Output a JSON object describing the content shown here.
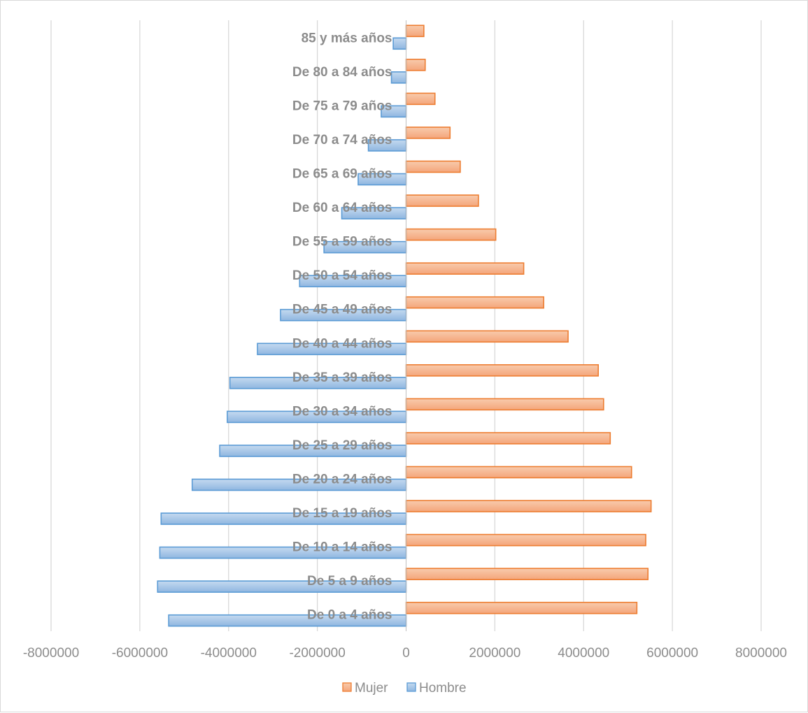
{
  "chart_data": {
    "type": "bar",
    "orientation": "horizontal",
    "categories": [
      "De 0 a 4 años",
      "De 5 a 9 años",
      "De 10 a 14 años",
      "De 15 a 19 años",
      "De 20 a 24 años",
      "De 25 a 29 años",
      "De 30 a 34 años",
      "De 35 a 39 años",
      "De 40 a 44 años",
      "De 45 a 49 años",
      "De 50 a 54 años",
      "De 55 a 59 años",
      "De 60 a 64 años",
      "De 65 a 69 años",
      "De 70 a 74 años",
      "De 75 a 79 años",
      "De 80 a 84 años",
      "85 y más años"
    ],
    "series": [
      {
        "name": "Mujer",
        "color": "#f4b183",
        "border": "#ed7d31",
        "values": [
          5200000,
          5450000,
          5400000,
          5520000,
          5080000,
          4600000,
          4450000,
          4330000,
          3650000,
          3100000,
          2650000,
          2020000,
          1630000,
          1220000,
          990000,
          650000,
          430000,
          400000
        ]
      },
      {
        "name": "Hombre",
        "color": "#9dc3e6",
        "border": "#5b9bd5",
        "values": [
          -5350000,
          -5600000,
          -5550000,
          -5520000,
          -4820000,
          -4200000,
          -4030000,
          -3970000,
          -3350000,
          -2830000,
          -2400000,
          -1850000,
          -1450000,
          -1080000,
          -850000,
          -560000,
          -330000,
          -290000
        ]
      }
    ],
    "xlim": [
      -8000000,
      8000000
    ],
    "xticks": [
      -8000000,
      -6000000,
      -4000000,
      -2000000,
      0,
      2000000,
      4000000,
      6000000,
      8000000
    ],
    "xtick_labels": [
      "-8000000",
      "-6000000",
      "-4000000",
      "-2000000",
      "0",
      "2000000",
      "4000000",
      "6000000",
      "8000000"
    ],
    "grid": "vertical",
    "legend_position": "bottom",
    "title": "",
    "xlabel": "",
    "ylabel": ""
  }
}
